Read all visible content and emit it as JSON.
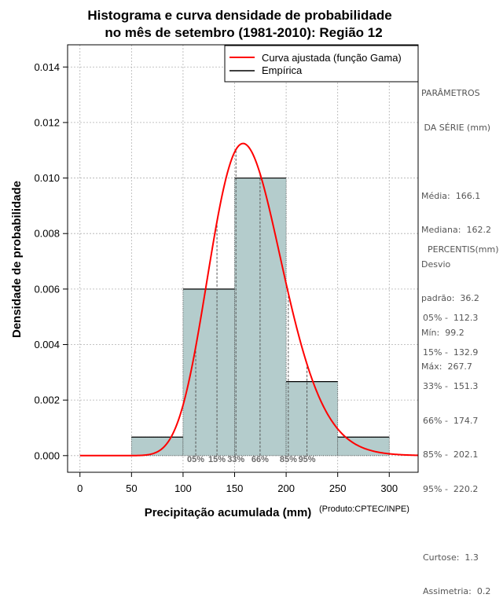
{
  "chart_data": {
    "type": "bar",
    "title_line1": "Histograma e curva densidade de probabilidade",
    "title_line2": "no mês de setembro (1981-2010): Região 12",
    "xlabel": "Precipitação acumulada (mm)",
    "ylabel": "Densidade de probabilidade",
    "credit": "(Produto:CPTEC/INPE)",
    "xlim": [
      -12,
      328
    ],
    "ylim": [
      -0.0006,
      0.0148
    ],
    "x_ticks": [
      0,
      50,
      100,
      150,
      200,
      250,
      300
    ],
    "x_tick_labels": [
      "0",
      "50",
      "100",
      "150",
      "200",
      "250",
      "300"
    ],
    "y_ticks": [
      0.0,
      0.002,
      0.004,
      0.006,
      0.008,
      0.01,
      0.012,
      0.014
    ],
    "y_tick_labels": [
      "0.000",
      "0.002",
      "0.004",
      "0.006",
      "0.008",
      "0.010",
      "0.012",
      "0.014"
    ],
    "grid": true,
    "bin_edges": [
      50,
      100,
      150,
      200,
      250,
      300
    ],
    "bins": [
      {
        "x0": 50,
        "x1": 100,
        "density": 0.000667
      },
      {
        "x0": 100,
        "x1": 150,
        "density": 0.006
      },
      {
        "x0": 150,
        "x1": 200,
        "density": 0.01
      },
      {
        "x0": 200,
        "x1": 250,
        "density": 0.002667
      },
      {
        "x0": 250,
        "x1": 300,
        "density": 0.000667
      }
    ],
    "gamma_fit": {
      "mean": 166.1,
      "sd": 36.2,
      "x_range": [
        0,
        328
      ]
    },
    "legend": {
      "position": "top-right",
      "entries": [
        {
          "label": "Curva ajustada (função Gama)",
          "color": "#ff0000"
        },
        {
          "label": "Empírica",
          "color": "#000000"
        }
      ]
    },
    "percentiles": [
      {
        "label": "05%",
        "value": 112.3
      },
      {
        "label": "15%",
        "value": 132.9
      },
      {
        "label": "33%",
        "value": 151.3
      },
      {
        "label": "66%",
        "value": 174.7
      },
      {
        "label": "85%",
        "value": 202.1
      },
      {
        "label": "95%",
        "value": 220.2
      }
    ],
    "colors": {
      "bar_fill": "#b4cccc",
      "curve": "#ff0000",
      "grid": "#b0b0b0",
      "percentile_line": "#555555"
    }
  },
  "stats_panel": {
    "params_title_1": "PARÂMETROS",
    "params_title_2": " DA SÉRIE (mm)",
    "media": "Média:  166.1",
    "mediana": "Mediana:  162.2",
    "desvio_1": "Desvio",
    "desvio_2": "padrão:  36.2",
    "min": "Mín:  99.2",
    "max": "Máx:  267.7",
    "perc_title": "PERCENTIS(mm)",
    "p05": "05% -  112.3",
    "p15": "15% -  132.9",
    "p33": "33% -  151.3",
    "p66": "66% -  174.7",
    "p85": "85% -  202.1",
    "p95": "95% -  220.2",
    "curtose": "Curtose:  1.3",
    "assimetria": "Assimetria:  0.2"
  }
}
